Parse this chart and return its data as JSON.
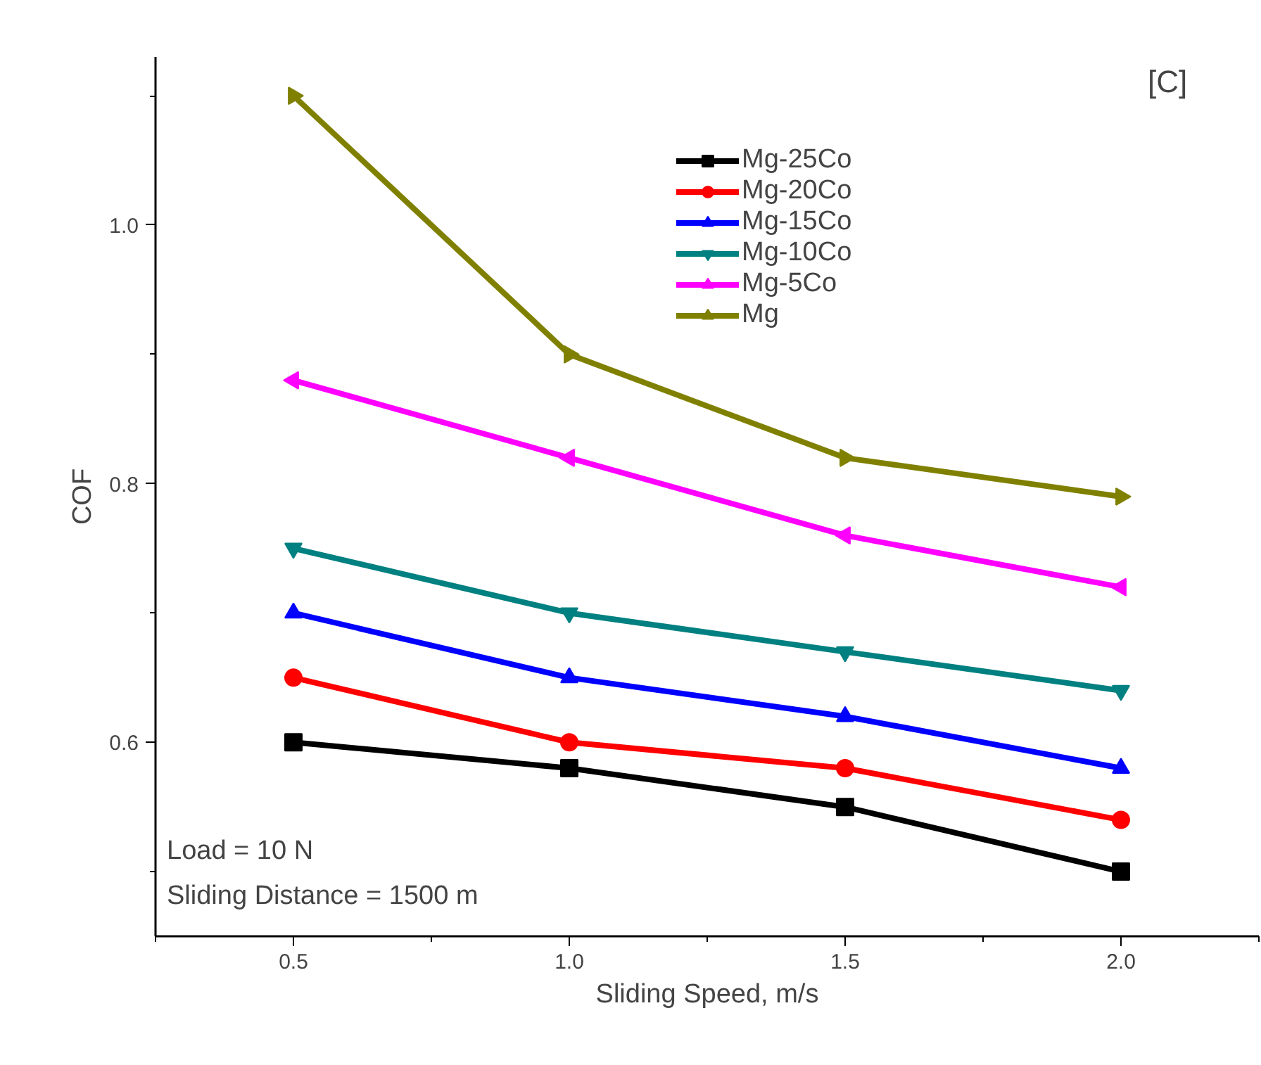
{
  "chart_data": {
    "type": "line",
    "xlabel": "Sliding Speed, m/s",
    "ylabel": "COF",
    "x": [
      0.5,
      1.0,
      1.5,
      2.0
    ],
    "xlim": [
      0.25,
      2.25
    ],
    "xticks": [
      0.5,
      {
        "value": 1.0,
        "label": "1.0"
      },
      1.5,
      {
        "value": 2.0,
        "label": "2.0"
      }
    ],
    "ylim": [
      0.45,
      1.13
    ],
    "yticks": [
      {
        "value": 0.6,
        "label": "0.6"
      },
      {
        "value": 0.8,
        "label": "0.8"
      },
      {
        "value": 1.0,
        "label": "1.0"
      }
    ],
    "grid": false,
    "legend": "top right",
    "line_style": "solid",
    "series": [
      {
        "name": "Mg-25Co",
        "color": "#000000",
        "marker": "square",
        "values": [
          0.6,
          0.58,
          0.55,
          0.5
        ]
      },
      {
        "name": "Mg-20Co",
        "color": "#ff0000",
        "marker": "circle",
        "values": [
          0.65,
          0.6,
          0.58,
          0.54
        ]
      },
      {
        "name": "Mg-15Co",
        "color": "#0000ff",
        "marker": "triangle",
        "values": [
          0.7,
          0.65,
          0.62,
          0.58
        ]
      },
      {
        "name": "Mg-10Co",
        "color": "#008080",
        "marker": "triangle_down",
        "values": [
          0.75,
          0.7,
          0.67,
          0.64
        ]
      },
      {
        "name": "Mg-5Co",
        "color": "#ff00ff",
        "marker": "triangle_left",
        "values": [
          0.88,
          0.82,
          0.76,
          0.72
        ]
      },
      {
        "name": "Mg",
        "color": "#808000",
        "marker": "triangle_right",
        "values": [
          1.1,
          0.9,
          0.82,
          0.79
        ]
      }
    ],
    "annotations": [
      "[C]",
      "Load = 10 N",
      "Sliding Distance = 1500 m"
    ]
  }
}
